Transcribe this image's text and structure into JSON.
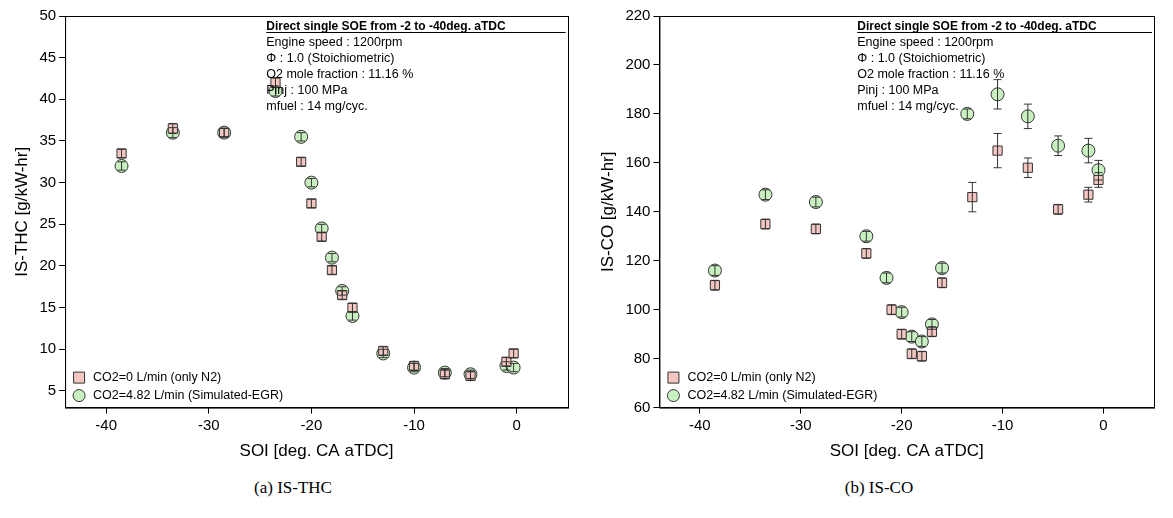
{
  "chart_data": [
    {
      "type": "scatter",
      "title": "(a) IS-THC",
      "x_label": "SOI [deg. CA aTDC]",
      "y_label": "IS-THC [g/kW-hr]",
      "xlim": [
        -44,
        5
      ],
      "xticks": [
        -40,
        -30,
        -20,
        -10,
        0
      ],
      "ylim": [
        3,
        50
      ],
      "yticks": [
        5,
        10,
        15,
        20,
        25,
        30,
        35,
        40,
        45,
        50
      ],
      "grid": false,
      "legend": "lower left",
      "annotations": [
        "Direct single SOE from -2 to -40deg. aTDC",
        "Engine speed : 1200rpm",
        "Φ : 1.0 (Stoichiometric)",
        "O2 mole fraction : 11.16 %",
        "Pinj : 100 MPa",
        "mfuel : 14 mg/cyc."
      ],
      "series": [
        {
          "name": "CO2=0 L/min (only N2)",
          "color": "#f4c6c2",
          "marker": "square",
          "x": [
            -38.5,
            -33.5,
            -28.5,
            -23.5,
            -21,
            -20,
            -19,
            -18,
            -17,
            -16,
            -13,
            -10,
            -7,
            -4.5,
            -1,
            -0.3
          ],
          "values": [
            33.5,
            36.5,
            36,
            42,
            32.5,
            27.5,
            23.5,
            19.5,
            16.5,
            15,
            9.8,
            8,
            7,
            6.8,
            8.5,
            9.5
          ],
          "errors": [
            0.5,
            0.6,
            0.5,
            0.6,
            0.5,
            0.5,
            0.5,
            0.5,
            0.5,
            0.5,
            0.5,
            0.5,
            0.5,
            0.5,
            0.5,
            0.5
          ]
        },
        {
          "name": "CO2=4.82 L/min (Simulated-EGR)",
          "color": "#c8f0c0",
          "marker": "circle",
          "x": [
            -38.5,
            -33.5,
            -28.5,
            -23.5,
            -21,
            -20,
            -19,
            -18,
            -17,
            -16,
            -13,
            -10,
            -7,
            -4.5,
            -1,
            -0.3
          ],
          "values": [
            32,
            36,
            36,
            41,
            35.5,
            30,
            24.5,
            21,
            17,
            14,
            9.5,
            7.8,
            7.2,
            7,
            8,
            7.8
          ],
          "errors": [
            0.5,
            0.6,
            0.5,
            0.6,
            0.5,
            0.5,
            0.5,
            0.5,
            0.5,
            0.5,
            0.5,
            0.5,
            0.5,
            0.5,
            0.5,
            0.5
          ]
        }
      ]
    },
    {
      "type": "scatter",
      "title": "(b) IS-CO",
      "x_label": "SOI [deg. CA aTDC]",
      "y_label": "IS-CO [g/kW-hr]",
      "xlim": [
        -44,
        5
      ],
      "xticks": [
        -40,
        -30,
        -20,
        -10,
        0
      ],
      "ylim": [
        60,
        220
      ],
      "yticks": [
        60,
        80,
        100,
        120,
        140,
        160,
        180,
        200,
        220
      ],
      "grid": false,
      "legend": "lower left",
      "annotations": [
        "Direct single SOE from -2 to -40deg. aTDC",
        "Engine speed : 1200rpm",
        "Φ : 1.0 (Stoichiometric)",
        "O2 mole fraction : 11.16 %",
        "Pinj : 100 MPa",
        "mfuel : 14 mg/cyc."
      ],
      "series": [
        {
          "name": "CO2=0 L/min (only N2)",
          "color": "#f4c6c2",
          "marker": "square",
          "x": [
            -38.5,
            -33.5,
            -28.5,
            -23.5,
            -21,
            -20,
            -19,
            -18,
            -17,
            -16,
            -13,
            -10.5,
            -7.5,
            -4.5,
            -1.5,
            -0.5
          ],
          "values": [
            110,
            135,
            133,
            123,
            100,
            90,
            82,
            81,
            91,
            111,
            146,
            165,
            158,
            141,
            147,
            153
          ],
          "errors": [
            2,
            2,
            2,
            2,
            2,
            2,
            2,
            2,
            2,
            2,
            6,
            7,
            4,
            2,
            3,
            3
          ]
        },
        {
          "name": "CO2=4.82 L/min (Simulated-EGR)",
          "color": "#c8f0c0",
          "marker": "circle",
          "x": [
            -38.5,
            -33.5,
            -28.5,
            -23.5,
            -21.5,
            -20,
            -19,
            -18,
            -17,
            -16,
            -13.5,
            -10.5,
            -7.5,
            -4.5,
            -1.5,
            -0.5
          ],
          "values": [
            116,
            147,
            144,
            130,
            113,
            99,
            89,
            87,
            94,
            117,
            180,
            188,
            179,
            167,
            165,
            157
          ],
          "errors": [
            2,
            2,
            2,
            2,
            2,
            2,
            2,
            2,
            2,
            2,
            2,
            6,
            5,
            4,
            5,
            4
          ]
        }
      ]
    }
  ]
}
